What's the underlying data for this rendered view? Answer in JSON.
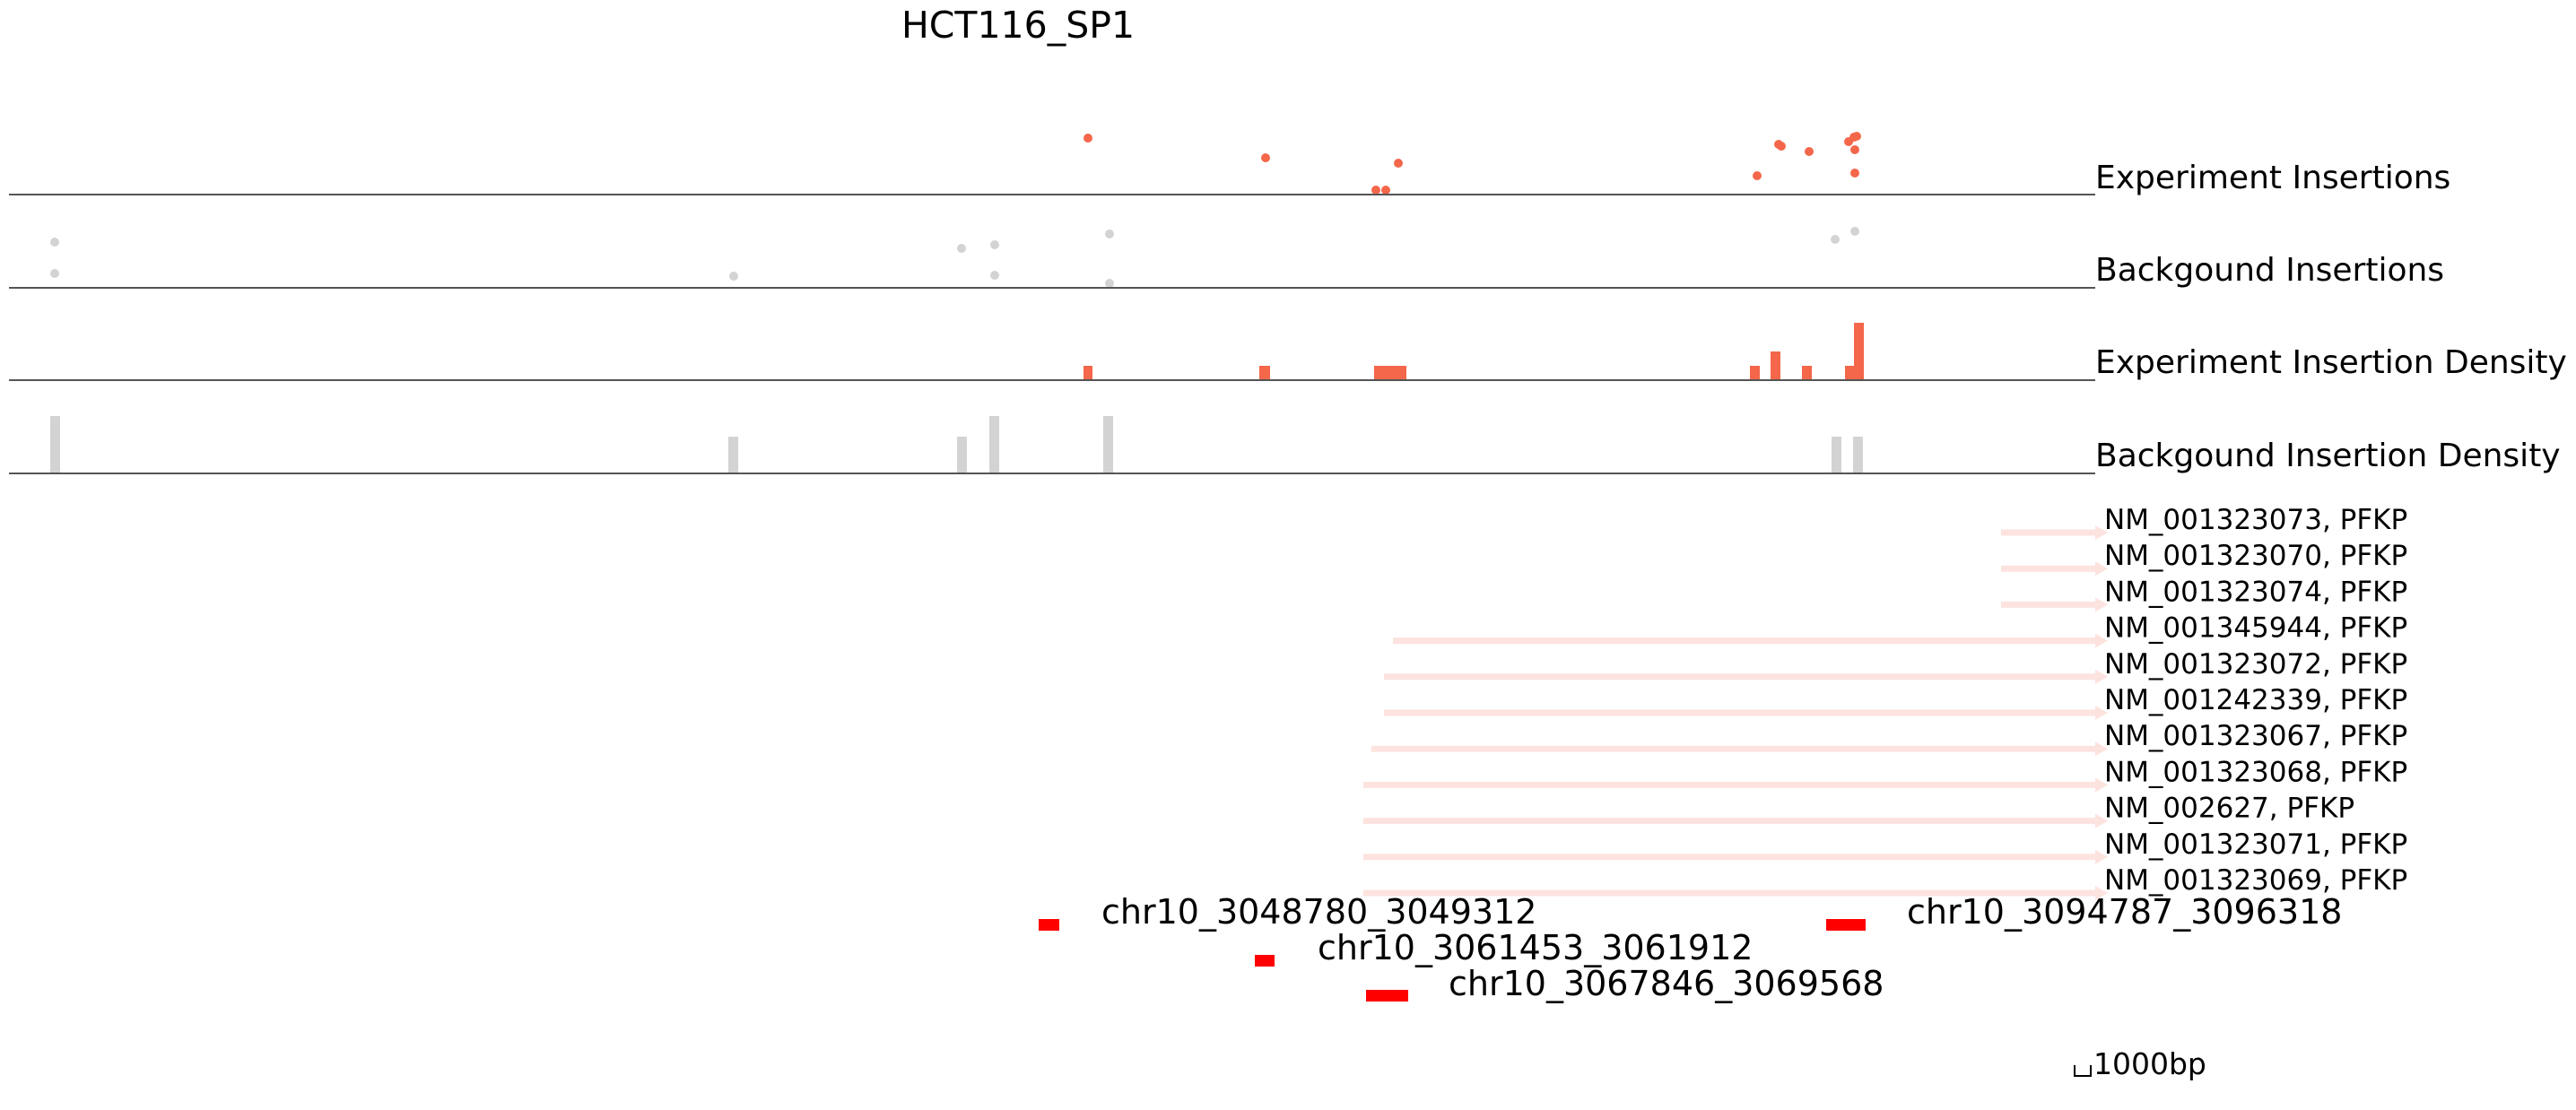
{
  "title": "HCT116_SP1",
  "colors": {
    "experiment": "#f4674a",
    "background": "#d3d3d3",
    "gene": "#fde3df",
    "peak": "#ff0000",
    "axis": "#555555"
  },
  "tracks": {
    "experiment_insertions": "Experiment Insertions",
    "background_insertions": "Backgound Insertions",
    "experiment_density": "Experiment Insertion Density",
    "background_density": "Backgound Insertion Density"
  },
  "genes": [
    {
      "label": "NM_001323073, PFKP"
    },
    {
      "label": "NM_001323070, PFKP"
    },
    {
      "label": "NM_001323074, PFKP"
    },
    {
      "label": "NM_001345944, PFKP"
    },
    {
      "label": "NM_001323072, PFKP"
    },
    {
      "label": "NM_001242339, PFKP"
    },
    {
      "label": "NM_001323067, PFKP"
    },
    {
      "label": "NM_001323068, PFKP"
    },
    {
      "label": "NM_002627, PFKP"
    },
    {
      "label": "NM_001323071, PFKP"
    },
    {
      "label": "NM_001323069, PFKP"
    }
  ],
  "peaks": [
    {
      "label": "chr10_3048780_3049312"
    },
    {
      "label": "chr10_3061453_3061912"
    },
    {
      "label": "chr10_3067846_3069568"
    },
    {
      "label": "chr10_3094787_3096318"
    }
  ],
  "scale_bar": {
    "label": "1000bp"
  }
}
